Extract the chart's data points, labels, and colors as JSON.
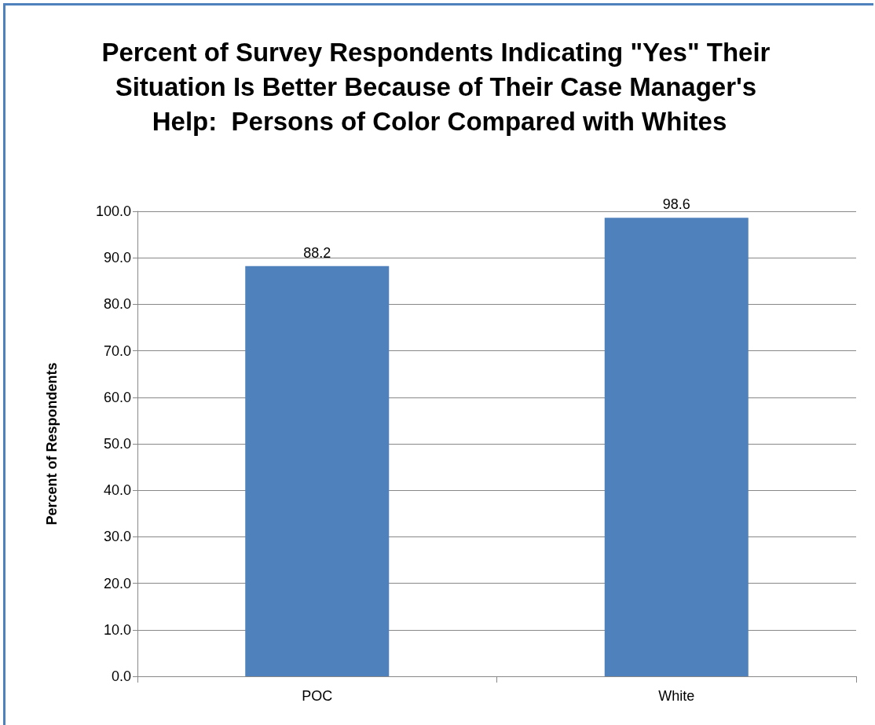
{
  "chart_data": {
    "type": "bar",
    "title": "Percent of Survey Respondents Indicating \"Yes\" Their Situation Is Better Because of Their Case Manager's Help:  Persons of Color Compared with Whites",
    "ylabel": "Percent of Respondents",
    "categories": [
      "POC",
      "White"
    ],
    "values": [
      88.2,
      98.6
    ],
    "color": "#4f81bd",
    "ylim": [
      0,
      100
    ],
    "yticks": [
      {
        "value": 0,
        "label": "0.0"
      },
      {
        "value": 10,
        "label": "10.0"
      },
      {
        "value": 20,
        "label": "20.0"
      },
      {
        "value": 30,
        "label": "30.0"
      },
      {
        "value": 40,
        "label": "40.0"
      },
      {
        "value": 50,
        "label": "50.0"
      },
      {
        "value": 60,
        "label": "60.0"
      },
      {
        "value": 70,
        "label": "70.0"
      },
      {
        "value": 80,
        "label": "80.0"
      },
      {
        "value": 90,
        "label": "90.0"
      },
      {
        "value": 100,
        "label": "100.0"
      }
    ],
    "grid": "y",
    "data_labels": true
  }
}
